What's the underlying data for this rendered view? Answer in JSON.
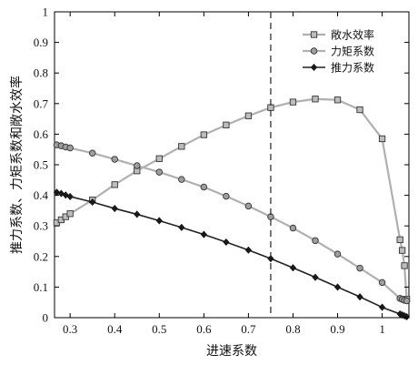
{
  "chart_data": {
    "type": "line",
    "title": "",
    "xlabel": "进速系数",
    "ylabel": "推力系数、力矩系数和敞水效率",
    "xlim": [
      0.265,
      1.06
    ],
    "ylim": [
      0,
      1
    ],
    "xticks": [
      0.3,
      0.4,
      0.5,
      0.6,
      0.7,
      0.8,
      0.9,
      1
    ],
    "xtick_labels": [
      "0.3",
      "0.4",
      "0.5",
      "0.6",
      "0.7",
      "0.8",
      "0.9",
      "1"
    ],
    "yticks": [
      0,
      0.1,
      0.2,
      0.3,
      0.4,
      0.5,
      0.6,
      0.7,
      0.8,
      0.9,
      1
    ],
    "ytick_labels": [
      "0",
      "0.1",
      "0.2",
      "0.3",
      "0.4",
      "0.5",
      "0.6",
      "0.7",
      "0.8",
      "0.9",
      "1"
    ],
    "grid": false,
    "legend_position": "top-right",
    "reference_line": {
      "x": 0.75,
      "style": "dashed"
    },
    "series": [
      {
        "name": "敞水效率",
        "marker": "square",
        "color": "#b0b0b0",
        "x": [
          0.27,
          0.28,
          0.29,
          0.3,
          0.35,
          0.4,
          0.45,
          0.5,
          0.55,
          0.6,
          0.65,
          0.7,
          0.75,
          0.8,
          0.85,
          0.9,
          0.95,
          1.0,
          1.04,
          1.045,
          1.05,
          1.055
        ],
        "y": [
          0.31,
          0.32,
          0.33,
          0.34,
          0.385,
          0.435,
          0.48,
          0.52,
          0.56,
          0.598,
          0.63,
          0.66,
          0.687,
          0.705,
          0.715,
          0.712,
          0.68,
          0.585,
          0.255,
          0.22,
          0.17,
          0.06
        ]
      },
      {
        "name": "力矩系数",
        "marker": "circle",
        "color": "#b0b0b0",
        "x": [
          0.27,
          0.28,
          0.29,
          0.3,
          0.35,
          0.4,
          0.45,
          0.5,
          0.55,
          0.6,
          0.65,
          0.7,
          0.75,
          0.8,
          0.85,
          0.9,
          0.95,
          1.0,
          1.04,
          1.045,
          1.05,
          1.055
        ],
        "y": [
          0.565,
          0.562,
          0.558,
          0.555,
          0.538,
          0.518,
          0.497,
          0.476,
          0.452,
          0.427,
          0.397,
          0.365,
          0.33,
          0.293,
          0.252,
          0.208,
          0.162,
          0.115,
          0.063,
          0.06,
          0.057,
          0.055
        ]
      },
      {
        "name": "推力系数",
        "marker": "diamond",
        "color": "#222222",
        "x": [
          0.27,
          0.28,
          0.29,
          0.3,
          0.35,
          0.4,
          0.45,
          0.5,
          0.55,
          0.6,
          0.65,
          0.7,
          0.75,
          0.8,
          0.85,
          0.9,
          0.95,
          1.0,
          1.04,
          1.045,
          1.05,
          1.055
        ],
        "y": [
          0.41,
          0.406,
          0.401,
          0.396,
          0.378,
          0.357,
          0.338,
          0.317,
          0.295,
          0.272,
          0.247,
          0.221,
          0.193,
          0.163,
          0.132,
          0.1,
          0.068,
          0.034,
          0.012,
          0.009,
          0.006,
          0.003
        ]
      }
    ]
  }
}
